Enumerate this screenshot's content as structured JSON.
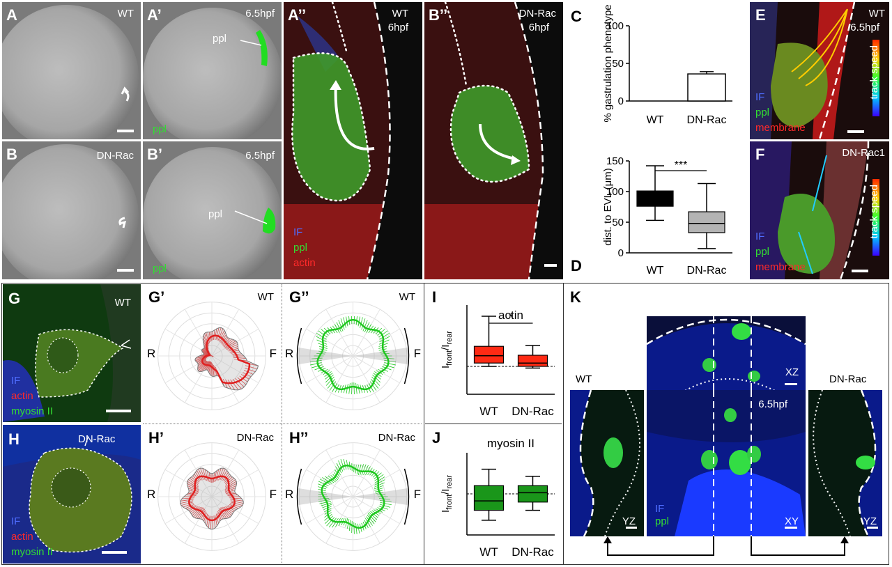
{
  "panels": {
    "A": {
      "label": "A",
      "condition": "WT"
    },
    "Ap": {
      "label": "A’",
      "stage": "6.5hpf",
      "ppl_line": "ppl",
      "ppl": "ppl"
    },
    "B": {
      "label": "B",
      "condition": "DN-Rac"
    },
    "Bp": {
      "label": "B’",
      "stage": "6.5hpf",
      "ppl_line": "ppl",
      "ppl": "ppl"
    },
    "App": {
      "label": "A’’",
      "condition": "WT",
      "stage": "6hpf",
      "if": "IF",
      "ppl": "ppl",
      "actin": "actin"
    },
    "Bpp": {
      "label": "B’’",
      "condition": "DN-Rac",
      "stage": "6hpf"
    },
    "E": {
      "label": "E",
      "condition": "WT",
      "stage": "6.5hpf",
      "if": "IF",
      "ppl": "ppl",
      "membrane": "membrane",
      "colorbar": "track speed"
    },
    "F": {
      "label": "F",
      "condition": "DN-Rac1",
      "if": "IF",
      "ppl": "ppl",
      "membrane": "membrane",
      "colorbar": "track speed"
    },
    "G": {
      "label": "G",
      "condition": "WT",
      "if": "IF",
      "actin": "actin",
      "myosin": "myosin II"
    },
    "H": {
      "label": "H",
      "condition": "DN-Rac",
      "if": "IF",
      "actin": "actin",
      "myosin": "myosin II"
    },
    "Gp": {
      "label": "G’",
      "condition": "WT",
      "r": "R",
      "f": "F"
    },
    "Gpp": {
      "label": "G’’",
      "condition": "WT",
      "r": "R",
      "f": "F"
    },
    "Hp": {
      "label": "H’",
      "condition": "DN-Rac",
      "r": "R",
      "f": "F"
    },
    "Hpp": {
      "label": "H’’",
      "condition": "DN-Rac",
      "r": "R",
      "f": "F"
    },
    "K": {
      "label": "K",
      "left_condition": "WT",
      "right_condition": "DN-Rac",
      "xz": "XZ",
      "xy": "XY",
      "yz_left": "YZ",
      "yz_right": "YZ",
      "stage": "6.5hpf",
      "if": "IF",
      "ppl": "ppl"
    }
  },
  "chart_data": [
    {
      "id": "C",
      "label": "C",
      "type": "bar",
      "categories": [
        "WT",
        "DN-Rac"
      ],
      "values": [
        0,
        36
      ],
      "errors": [
        0,
        3
      ],
      "ylabel": "% gastrulation phenotype",
      "ylim": [
        0,
        100
      ],
      "yticks": [
        0,
        50,
        100
      ]
    },
    {
      "id": "D",
      "label": "D",
      "type": "box",
      "categories": [
        "WT",
        "DN-Rac"
      ],
      "boxes": [
        {
          "min": 53,
          "q1": 76,
          "median": 88,
          "q3": 101,
          "max": 142,
          "color": "#000000",
          "median_color": "#000000"
        },
        {
          "min": 7,
          "q1": 33,
          "median": 48,
          "q3": 67,
          "max": 113,
          "color": "#b4b4b4",
          "median_color": "#000000"
        }
      ],
      "ylabel": "dist. to EVL (μm)",
      "ylim": [
        0,
        150
      ],
      "yticks": [
        0,
        50,
        100,
        150
      ],
      "annotation": "***"
    },
    {
      "id": "I",
      "label": "I",
      "type": "box",
      "title": "actin",
      "categories": [
        "WT",
        "DN-Rac"
      ],
      "boxes": [
        {
          "min": 1.0,
          "q1": 1.12,
          "median": 1.38,
          "q3": 1.72,
          "max": 2.8,
          "color": "#ff2a14",
          "median_color": "#000000"
        },
        {
          "min": 0.94,
          "q1": 1.0,
          "median": 1.12,
          "q3": 1.4,
          "max": 1.75,
          "color": "#ff2a14",
          "median_color": "#000000"
        }
      ],
      "ylabel": "Ifront/Irear",
      "ylim": [
        0,
        3.2
      ],
      "refline": 1.0,
      "annotation": "*"
    },
    {
      "id": "J",
      "label": "J",
      "type": "box",
      "title": "myosin II",
      "categories": [
        "WT",
        "DN-Rac"
      ],
      "boxes": [
        {
          "min": 0.55,
          "q1": 0.72,
          "median": 0.88,
          "q3": 1.14,
          "max": 1.42,
          "color": "#1a961a",
          "median_color": "#000000"
        },
        {
          "min": 0.72,
          "q1": 0.86,
          "median": 1.02,
          "q3": 1.14,
          "max": 1.3,
          "color": "#1a961a",
          "median_color": "#000000"
        }
      ],
      "ylabel": "Ifront/Irear",
      "ylim": [
        0.3,
        1.7
      ],
      "refline": 1.0
    }
  ]
}
